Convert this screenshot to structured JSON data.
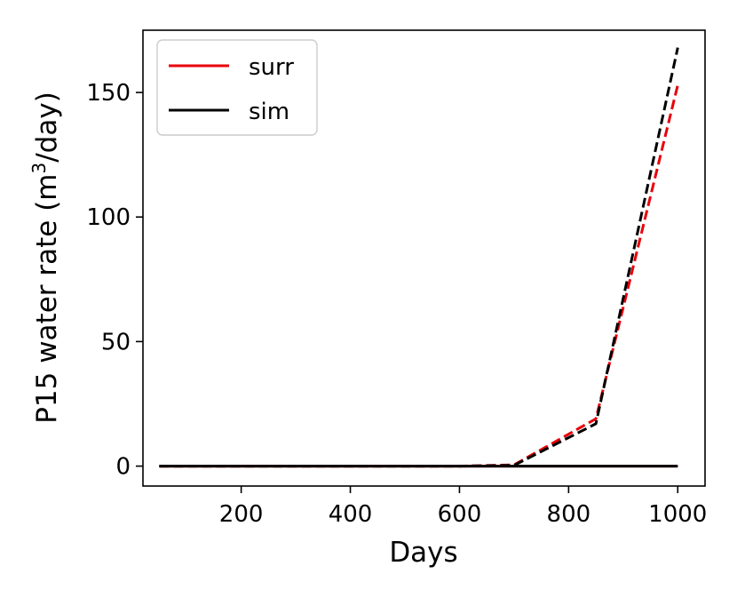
{
  "chart_data": {
    "type": "line",
    "title": "",
    "xlabel": "Days",
    "ylabel": {
      "main": "P15 water rate (m",
      "sup": "3",
      "tail": "/day)"
    },
    "xlim": [
      20,
      1050
    ],
    "ylim": [
      -8,
      175
    ],
    "xticks": [
      200,
      400,
      600,
      800,
      1000
    ],
    "yticks": [
      0,
      50,
      100,
      150
    ],
    "grid": false,
    "legend": {
      "placement": "top-left",
      "entries": [
        {
          "label": "surr",
          "color": "#e8000b",
          "style": "solid"
        },
        {
          "label": "sim",
          "color": "#000000",
          "style": "solid"
        }
      ]
    },
    "series": [
      {
        "style": "solid",
        "color": "#e8000b",
        "x": [
          50,
          1000
        ],
        "y": [
          0,
          0
        ]
      },
      {
        "style": "solid",
        "color": "#000000",
        "x": [
          50,
          1000
        ],
        "y": [
          0,
          0
        ]
      },
      {
        "style": "dashed",
        "color": "#e8000b",
        "x": [
          50,
          100,
          200,
          300,
          400,
          500,
          600,
          700,
          850,
          1000
        ],
        "y": [
          0,
          0,
          0,
          0,
          0,
          0,
          0,
          0.5,
          19,
          153
        ]
      },
      {
        "style": "dashed",
        "color": "#000000",
        "x": [
          50,
          100,
          200,
          300,
          400,
          500,
          600,
          700,
          850,
          1000
        ],
        "y": [
          0,
          0,
          0,
          0,
          0,
          0,
          0,
          0.3,
          17,
          168
        ]
      }
    ]
  }
}
